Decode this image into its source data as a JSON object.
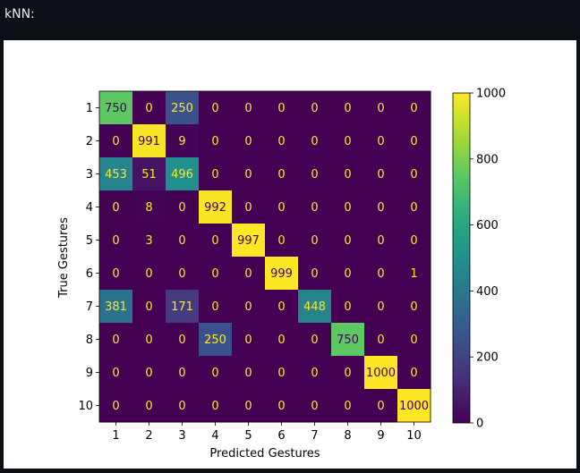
{
  "cell": {
    "title": "kNN:"
  },
  "chart_data": {
    "type": "heatmap",
    "title": "",
    "xlabel": "Predicted Gestures",
    "ylabel": "True Gestures",
    "x_categories": [
      "1",
      "2",
      "3",
      "4",
      "5",
      "6",
      "7",
      "8",
      "9",
      "10"
    ],
    "y_categories": [
      "1",
      "2",
      "3",
      "4",
      "5",
      "6",
      "7",
      "8",
      "9",
      "10"
    ],
    "values": [
      [
        750,
        0,
        250,
        0,
        0,
        0,
        0,
        0,
        0,
        0
      ],
      [
        0,
        991,
        9,
        0,
        0,
        0,
        0,
        0,
        0,
        0
      ],
      [
        453,
        51,
        496,
        0,
        0,
        0,
        0,
        0,
        0,
        0
      ],
      [
        0,
        8,
        0,
        992,
        0,
        0,
        0,
        0,
        0,
        0
      ],
      [
        0,
        3,
        0,
        0,
        997,
        0,
        0,
        0,
        0,
        0
      ],
      [
        0,
        0,
        0,
        0,
        0,
        999,
        0,
        0,
        0,
        1
      ],
      [
        381,
        0,
        171,
        0,
        0,
        0,
        448,
        0,
        0,
        0
      ],
      [
        0,
        0,
        0,
        250,
        0,
        0,
        0,
        750,
        0,
        0
      ],
      [
        0,
        0,
        0,
        0,
        0,
        0,
        0,
        0,
        1000,
        0
      ],
      [
        0,
        0,
        0,
        0,
        0,
        0,
        0,
        0,
        0,
        1000
      ]
    ],
    "colorbar": {
      "range": [
        0,
        1000
      ],
      "ticks": [
        0,
        200,
        400,
        600,
        800,
        1000
      ]
    },
    "colormap": "viridis",
    "grid": false
  }
}
